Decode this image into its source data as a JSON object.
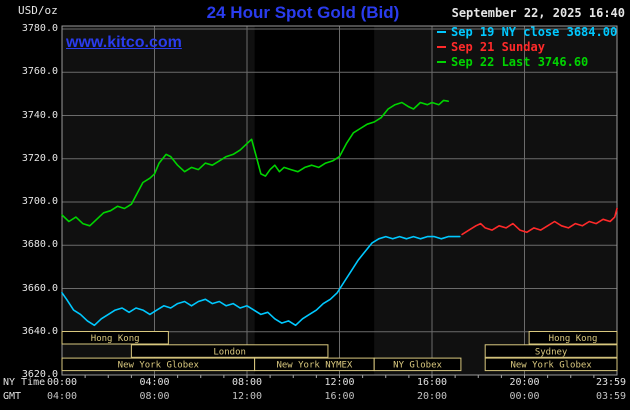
{
  "header": {
    "units_label": "USD/oz",
    "title": "24 Hour Spot Gold (Bid)",
    "datetime": "September 22, 2025 16:40",
    "watermark": "www.kitco.com"
  },
  "legend": {
    "items": [
      {
        "label": "Sep 19 NY close 3684.00",
        "color": "#00c8ff"
      },
      {
        "label": "Sep 21 Sunday",
        "color": "#ff2a2a"
      },
      {
        "label": "Sep 22 Last 3746.60",
        "color": "#00d400"
      }
    ]
  },
  "axes": {
    "x_ny_label": "NY Time",
    "x_gmt_label": "GMT",
    "y_ticks": [
      "3780.0",
      "3760.0",
      "3740.0",
      "3720.0",
      "3700.0",
      "3680.0",
      "3660.0",
      "3640.0",
      "3620.0"
    ],
    "x_tick_hours": [
      0,
      4,
      8,
      12,
      16,
      20,
      24
    ],
    "x_ny_ticks": [
      "00:00",
      "04:00",
      "08:00",
      "12:00",
      "16:00",
      "20:00",
      "23:59"
    ],
    "x_gmt_ticks": [
      "04:00",
      "08:00",
      "12:00",
      "16:00",
      "20:00",
      "00:00",
      "03:59"
    ]
  },
  "sessions": [
    {
      "label": "Hong Kong",
      "row": 0,
      "start": 0,
      "end": 4.6
    },
    {
      "label": "Hong Kong",
      "row": 0,
      "start": 20.2,
      "end": 24
    },
    {
      "label": "London",
      "row": 1,
      "start": 3.0,
      "end": 11.5
    },
    {
      "label": "Sydney",
      "row": 1,
      "start": 18.3,
      "end": 24
    },
    {
      "label": "New York Globex",
      "row": 2,
      "start": 0,
      "end": 8.33
    },
    {
      "label": "New York NYMEX",
      "row": 2,
      "start": 8.33,
      "end": 13.5
    },
    {
      "label": "NY Globex",
      "row": 2,
      "start": 13.5,
      "end": 17.25
    },
    {
      "label": "New York Globex",
      "row": 2,
      "start": 18.3,
      "end": 24
    }
  ],
  "chart_data": {
    "type": "line",
    "title": "24 Hour Spot Gold (Bid)",
    "ylabel": "USD/oz",
    "ylim": [
      3620,
      3780
    ],
    "y_grid_step": 20,
    "xlim_hours": [
      0,
      24
    ],
    "x_grid_step_hours": 4,
    "band_hours": [
      8.33,
      13.5
    ],
    "grid": true,
    "legend_position": "top-right",
    "series": [
      {
        "name": "Sep 19 NY close 3684.00",
        "color": "#00c8ff",
        "points": [
          [
            0,
            3658
          ],
          [
            0.2,
            3655
          ],
          [
            0.5,
            3650
          ],
          [
            0.8,
            3648
          ],
          [
            1.1,
            3645
          ],
          [
            1.4,
            3643
          ],
          [
            1.7,
            3646
          ],
          [
            2,
            3648
          ],
          [
            2.3,
            3650
          ],
          [
            2.6,
            3651
          ],
          [
            2.9,
            3649
          ],
          [
            3.2,
            3651
          ],
          [
            3.5,
            3650
          ],
          [
            3.8,
            3648
          ],
          [
            4.1,
            3650
          ],
          [
            4.4,
            3652
          ],
          [
            4.7,
            3651
          ],
          [
            5,
            3653
          ],
          [
            5.3,
            3654
          ],
          [
            5.6,
            3652
          ],
          [
            5.9,
            3654
          ],
          [
            6.2,
            3655
          ],
          [
            6.5,
            3653
          ],
          [
            6.8,
            3654
          ],
          [
            7.1,
            3652
          ],
          [
            7.4,
            3653
          ],
          [
            7.7,
            3651
          ],
          [
            8,
            3652
          ],
          [
            8.3,
            3650
          ],
          [
            8.6,
            3648
          ],
          [
            8.9,
            3649
          ],
          [
            9.2,
            3646
          ],
          [
            9.5,
            3644
          ],
          [
            9.8,
            3645
          ],
          [
            10.1,
            3643
          ],
          [
            10.4,
            3646
          ],
          [
            10.7,
            3648
          ],
          [
            11,
            3650
          ],
          [
            11.3,
            3653
          ],
          [
            11.6,
            3655
          ],
          [
            11.9,
            3658
          ],
          [
            12.2,
            3663
          ],
          [
            12.5,
            3668
          ],
          [
            12.8,
            3673
          ],
          [
            13.1,
            3677
          ],
          [
            13.4,
            3681
          ],
          [
            13.7,
            3683
          ],
          [
            14,
            3684
          ],
          [
            14.3,
            3683
          ],
          [
            14.6,
            3684
          ],
          [
            14.9,
            3683
          ],
          [
            15.2,
            3684
          ],
          [
            15.5,
            3683
          ],
          [
            15.8,
            3684
          ],
          [
            16.1,
            3684
          ],
          [
            16.4,
            3683
          ],
          [
            16.7,
            3684
          ],
          [
            17,
            3684
          ],
          [
            17.2,
            3684
          ]
        ]
      },
      {
        "name": "Sep 21 Sunday",
        "color": "#ff2a2a",
        "points": [
          [
            17.3,
            3685
          ],
          [
            17.6,
            3687
          ],
          [
            17.9,
            3689
          ],
          [
            18.1,
            3690
          ],
          [
            18.3,
            3688
          ],
          [
            18.6,
            3687
          ],
          [
            18.9,
            3689
          ],
          [
            19.2,
            3688
          ],
          [
            19.5,
            3690
          ],
          [
            19.8,
            3687
          ],
          [
            20.1,
            3686
          ],
          [
            20.4,
            3688
          ],
          [
            20.7,
            3687
          ],
          [
            21,
            3689
          ],
          [
            21.3,
            3691
          ],
          [
            21.6,
            3689
          ],
          [
            21.9,
            3688
          ],
          [
            22.2,
            3690
          ],
          [
            22.5,
            3689
          ],
          [
            22.8,
            3691
          ],
          [
            23.1,
            3690
          ],
          [
            23.4,
            3692
          ],
          [
            23.7,
            3691
          ],
          [
            23.9,
            3693
          ],
          [
            24,
            3697
          ]
        ]
      },
      {
        "name": "Sep 22 Last 3746.60",
        "color": "#00d400",
        "points": [
          [
            0,
            3694
          ],
          [
            0.3,
            3691
          ],
          [
            0.6,
            3693
          ],
          [
            0.9,
            3690
          ],
          [
            1.2,
            3689
          ],
          [
            1.5,
            3692
          ],
          [
            1.8,
            3695
          ],
          [
            2.1,
            3696
          ],
          [
            2.4,
            3698
          ],
          [
            2.7,
            3697
          ],
          [
            3,
            3699
          ],
          [
            3.2,
            3703
          ],
          [
            3.5,
            3709
          ],
          [
            3.8,
            3711
          ],
          [
            4,
            3713
          ],
          [
            4.2,
            3718
          ],
          [
            4.5,
            3722
          ],
          [
            4.7,
            3721
          ],
          [
            5,
            3717
          ],
          [
            5.3,
            3714
          ],
          [
            5.6,
            3716
          ],
          [
            5.9,
            3715
          ],
          [
            6.2,
            3718
          ],
          [
            6.5,
            3717
          ],
          [
            6.8,
            3719
          ],
          [
            7.1,
            3721
          ],
          [
            7.4,
            3722
          ],
          [
            7.7,
            3724
          ],
          [
            8,
            3727
          ],
          [
            8.2,
            3729
          ],
          [
            8.4,
            3721
          ],
          [
            8.6,
            3713
          ],
          [
            8.8,
            3712
          ],
          [
            9,
            3715
          ],
          [
            9.2,
            3717
          ],
          [
            9.4,
            3714
          ],
          [
            9.6,
            3716
          ],
          [
            9.9,
            3715
          ],
          [
            10.2,
            3714
          ],
          [
            10.5,
            3716
          ],
          [
            10.8,
            3717
          ],
          [
            11.1,
            3716
          ],
          [
            11.4,
            3718
          ],
          [
            11.7,
            3719
          ],
          [
            12,
            3721
          ],
          [
            12.3,
            3727
          ],
          [
            12.6,
            3732
          ],
          [
            12.9,
            3734
          ],
          [
            13.2,
            3736
          ],
          [
            13.5,
            3737
          ],
          [
            13.8,
            3739
          ],
          [
            14.1,
            3743
          ],
          [
            14.4,
            3745
          ],
          [
            14.7,
            3746
          ],
          [
            15,
            3744
          ],
          [
            15.2,
            3743
          ],
          [
            15.5,
            3746
          ],
          [
            15.8,
            3745
          ],
          [
            16,
            3746
          ],
          [
            16.3,
            3745
          ],
          [
            16.5,
            3747
          ],
          [
            16.7,
            3746.6
          ]
        ]
      }
    ],
    "colors": {
      "plot_bg": "#101010",
      "band": "#000000",
      "grid": "#6b6b6b",
      "border": "#9a9a9a",
      "session": "#d9c87f"
    }
  }
}
